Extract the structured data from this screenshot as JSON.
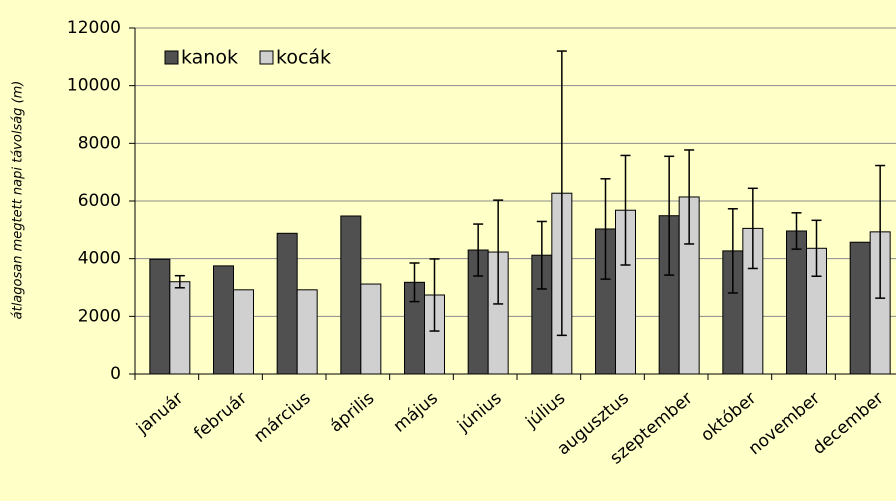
{
  "chart_data": {
    "type": "bar",
    "y_label": "átlagosan megtett napi távolság (m)",
    "categories": [
      "január",
      "február",
      "március",
      "április",
      "május",
      "június",
      "július",
      "augusztus",
      "szeptember",
      "október",
      "november",
      "december"
    ],
    "series": [
      {
        "name": "kanok",
        "color": "#505050",
        "values": [
          3980,
          3750,
          4880,
          5480,
          3180,
          4300,
          4120,
          5030,
          5490,
          4270,
          4960,
          4570
        ],
        "errors": [
          null,
          null,
          null,
          null,
          670,
          900,
          1170,
          1740,
          2060,
          1460,
          630,
          null
        ]
      },
      {
        "name": "kocák",
        "color": "#d0d0d0",
        "values": [
          3200,
          2920,
          2920,
          3120,
          2740,
          4230,
          6270,
          5680,
          6140,
          5050,
          4360,
          4930
        ],
        "errors": [
          210,
          null,
          null,
          null,
          1250,
          1800,
          4930,
          1900,
          1630,
          1390,
          970,
          2300
        ]
      }
    ],
    "ylim": [
      0,
      12000
    ],
    "yticks": [
      0,
      2000,
      4000,
      6000,
      8000,
      10000,
      12000
    ],
    "grid": true,
    "legend": "top-left"
  }
}
